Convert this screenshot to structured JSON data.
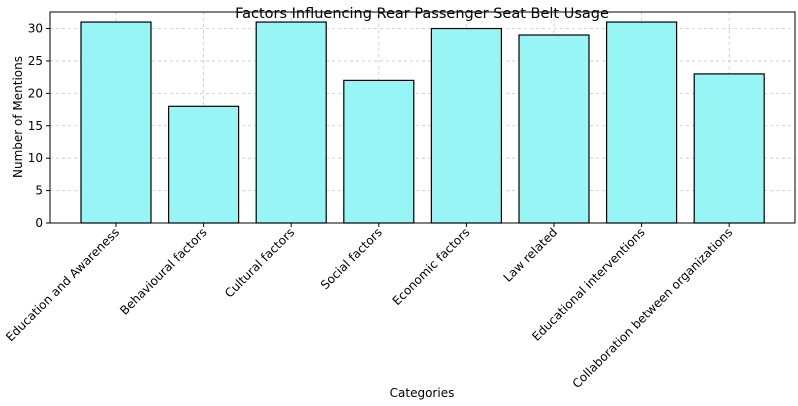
{
  "chart_data": {
    "type": "bar",
    "title": "Factors Influencing Rear Passenger Seat Belt Usage",
    "xlabel": "Categories",
    "ylabel": "Number of Mentions",
    "categories": [
      "Education and Awareness",
      "Behavioural factors",
      "Cultural factors",
      "Social factors",
      "Economic factors",
      "Law related",
      "Educational interventions",
      "Collaboration between organizations"
    ],
    "values": [
      31,
      18,
      31,
      22,
      30,
      29,
      31,
      23
    ],
    "ylim": [
      0,
      32.55
    ],
    "yticks": [
      0,
      5,
      10,
      15,
      20,
      25,
      30
    ],
    "grid": true,
    "bar_color": "#98f5f5",
    "bar_edge_color": "#000000"
  }
}
